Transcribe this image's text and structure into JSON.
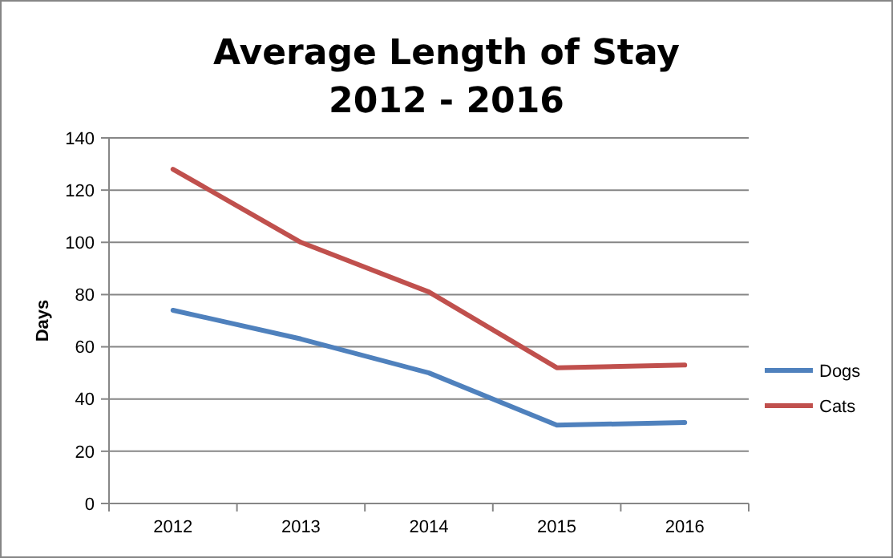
{
  "chart_data": {
    "type": "line",
    "title": "Average Length of Stay\n2012 - 2016",
    "ylabel": "Days",
    "categories": [
      "2012",
      "2013",
      "2014",
      "2015",
      "2016"
    ],
    "series": [
      {
        "name": "Dogs",
        "color": "#4f81bd",
        "values": [
          74,
          63,
          50,
          30,
          31
        ]
      },
      {
        "name": "Cats",
        "color": "#c0504d",
        "values": [
          128,
          100,
          81,
          52,
          53
        ]
      }
    ],
    "ylim": [
      0,
      140
    ],
    "yticks": [
      0,
      20,
      40,
      60,
      80,
      100,
      120,
      140
    ],
    "grid": "y",
    "legend": "right",
    "marker": "none"
  }
}
